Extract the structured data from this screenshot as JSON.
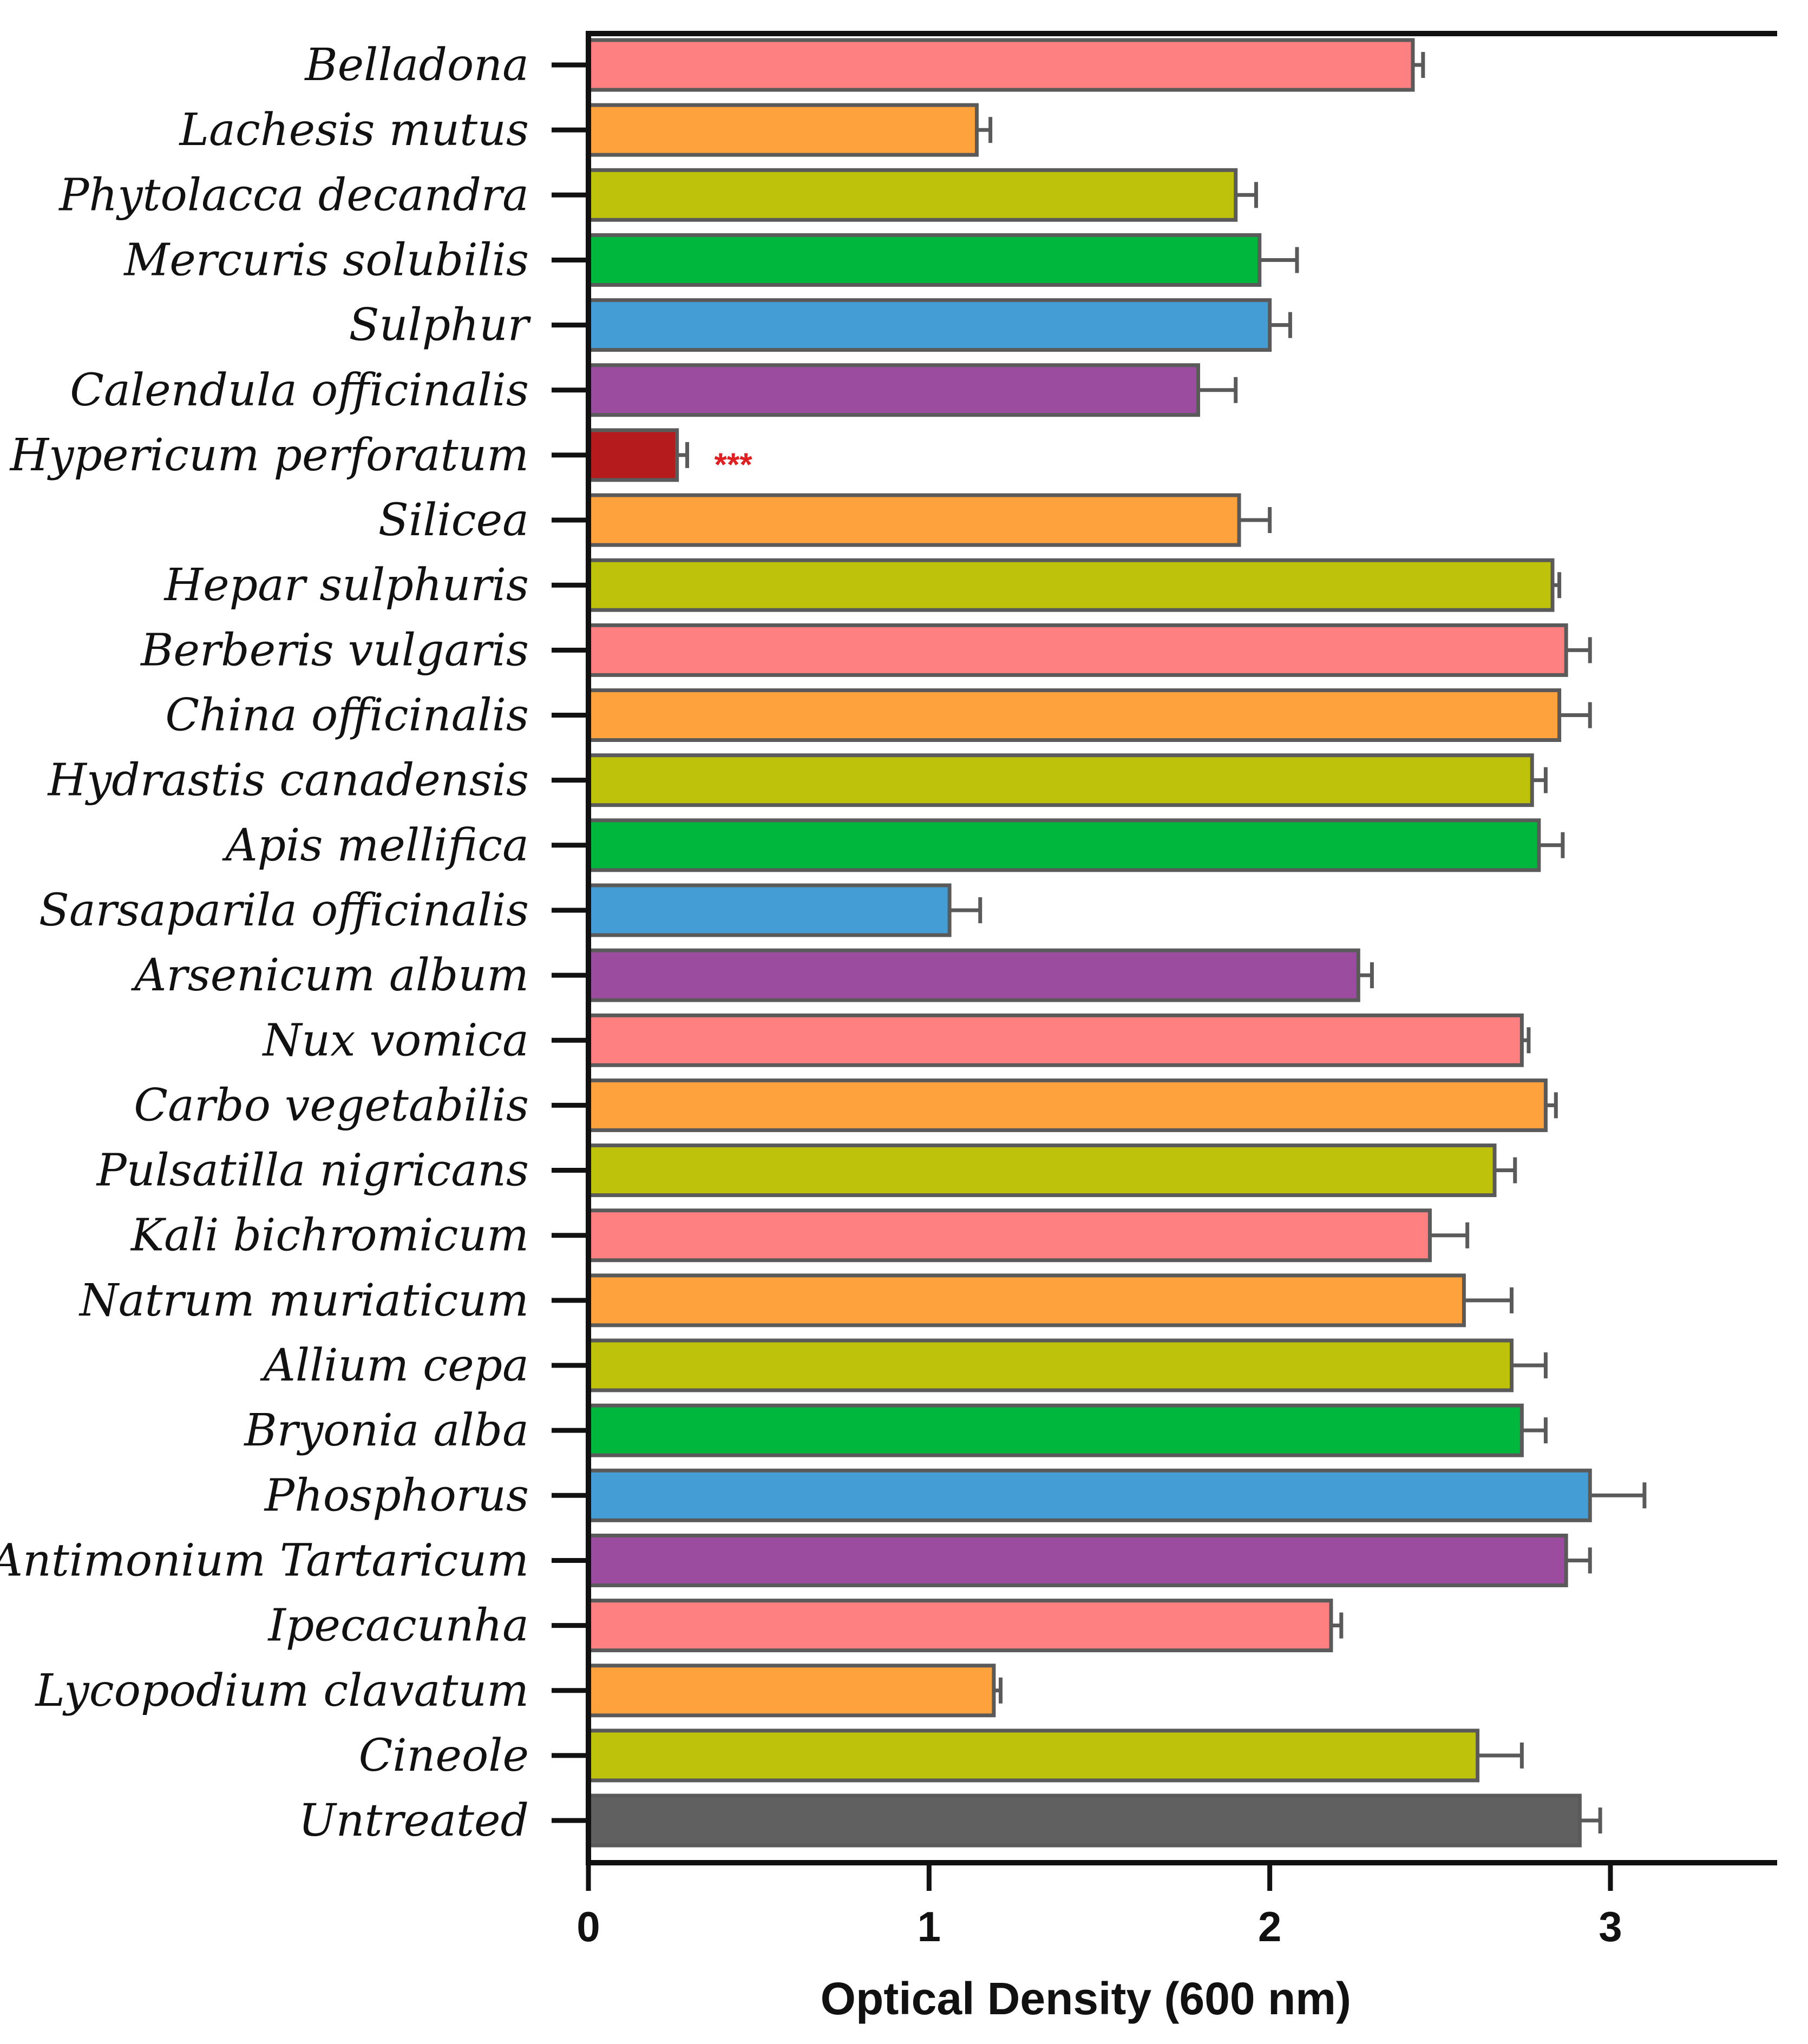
{
  "chart_data": {
    "type": "bar",
    "orientation": "horizontal",
    "title": "",
    "xlabel": "Optical Density (600 nm)",
    "ylabel": "",
    "xlim": [
      0,
      3.5
    ],
    "xticks": [
      "0",
      "1",
      "2",
      "3"
    ],
    "grid": false,
    "categories": [
      "Belladona",
      "Lachesis mutus",
      "Phytolacca decandra",
      "Mercuris solubilis",
      "Sulphur",
      "Calendula officinalis",
      "Hypericum perforatum",
      "Silicea",
      "Hepar sulphuris",
      "Berberis vulgaris",
      "China officinalis",
      "Hydrastis canadensis",
      "Apis mellifica",
      "Sarsaparila officinalis",
      "Arsenicum album",
      "Nux vomica",
      "Carbo vegetabilis",
      "Pulsatilla nigricans",
      "Kali bichromicum",
      "Natrum muriaticum",
      "Allium cepa",
      "Bryonia alba",
      "Phosphorus",
      "Antimonium Tartaricum",
      "Ipecacunha",
      "Lycopodium clavatum",
      "Cineole",
      "Untreated"
    ],
    "values": [
      2.42,
      1.14,
      1.9,
      1.97,
      2.0,
      1.79,
      0.26,
      1.91,
      2.83,
      2.87,
      2.85,
      2.77,
      2.79,
      1.06,
      2.26,
      2.74,
      2.81,
      2.66,
      2.47,
      2.57,
      2.71,
      2.74,
      2.94,
      2.87,
      2.18,
      1.19,
      2.61,
      2.91
    ],
    "errors": [
      0.03,
      0.04,
      0.06,
      0.11,
      0.06,
      0.11,
      0.03,
      0.09,
      0.02,
      0.07,
      0.09,
      0.04,
      0.07,
      0.09,
      0.04,
      0.02,
      0.03,
      0.06,
      0.11,
      0.14,
      0.1,
      0.07,
      0.16,
      0.07,
      0.03,
      0.02,
      0.13,
      0.06
    ],
    "colors": [
      "#fe8080",
      "#fea23e",
      "#bfc20a",
      "#00b73e",
      "#449dd5",
      "#9b4c9e",
      "#b51b1d",
      "#fea23e",
      "#bfc20a",
      "#fe8080",
      "#fea23e",
      "#bfc20a",
      "#00b73e",
      "#449dd5",
      "#9b4c9e",
      "#fe8080",
      "#fea23e",
      "#bfc20a",
      "#fe8080",
      "#fea23e",
      "#bfc20a",
      "#00b73e",
      "#449dd5",
      "#9b4c9e",
      "#fe8080",
      "#fea23e",
      "#bfc20a",
      "#606060"
    ],
    "annotations": [
      {
        "category_index": 6,
        "text": "***",
        "color": "#e02020"
      }
    ]
  }
}
